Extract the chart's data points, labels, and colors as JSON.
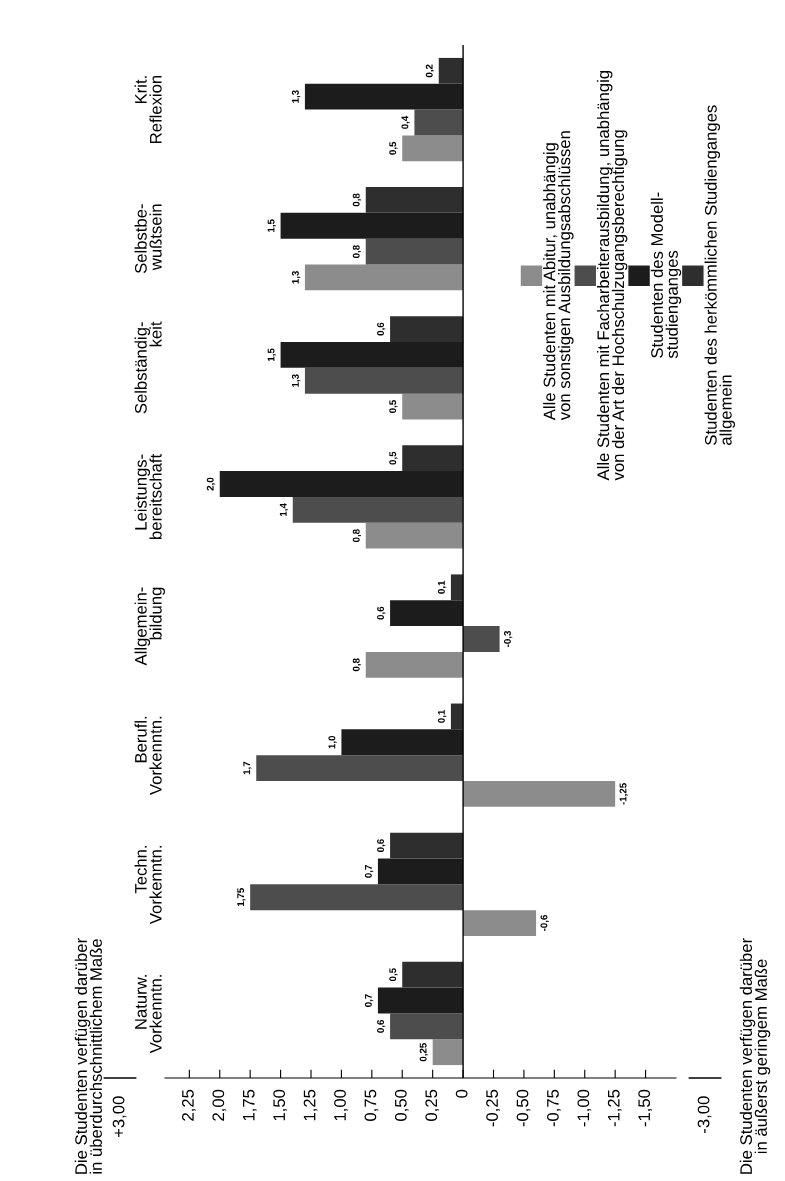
{
  "chart_data": {
    "type": "bar",
    "orientation": "horizontal",
    "categories": [
      "Krit.\nReflexion",
      "Selbstbe-\nwußtsein",
      "Selbständig-\nkeit",
      "Leistungs-\nbereitschaft",
      "Allgemein-\nbildung",
      "Berufl.\nVorkenntn.",
      "Techn.\nVorkenntn.",
      "Naturw.\nVorkenntn."
    ],
    "series": [
      {
        "name": "Alle Studenten mit Abitur, unabhängig\nvon sonstigen Ausbildungsabschlüssen",
        "color": "#8c8c8c",
        "values": [
          0.5,
          1.3,
          0.5,
          0.8,
          0.8,
          -1.25,
          -0.6,
          0.25
        ],
        "value_labels": [
          "0,5",
          "1,3",
          "0,5",
          "0,8",
          "0,8",
          "-1,25",
          "-0,6",
          "0,25"
        ]
      },
      {
        "name": "Alle Studenten mit Facharbeiterausbildung, unabhängig\nvon der Art der Hochschulzugangsberechtigung",
        "color": "#4d4d4d",
        "values": [
          0.4,
          0.8,
          1.3,
          1.4,
          -0.3,
          1.7,
          1.75,
          0.6
        ],
        "value_labels": [
          "0,4",
          "0,8",
          "1,3",
          "1,4",
          "-0,3",
          "1,7",
          "1,75",
          "0,6"
        ]
      },
      {
        "name": "Studenten des Modell-\nstudienganges",
        "color": "#1c1c1c",
        "values": [
          1.3,
          1.5,
          1.5,
          2.0,
          0.6,
          1.0,
          0.7,
          0.7
        ],
        "value_labels": [
          "1,3",
          "1,5",
          "1,5",
          "2,0",
          "0,6",
          "1,0",
          "0,7",
          "0,7"
        ]
      },
      {
        "name": "Studenten des herkömmlichen Studienganges\nallgemein",
        "color": "#2e2e2e",
        "values": [
          0.2,
          0.8,
          0.6,
          0.5,
          0.1,
          0.1,
          0.6,
          0.5
        ],
        "value_labels": [
          "0,2",
          "0,8",
          "0,6",
          "0,5",
          "0,1",
          "0,1",
          "0,6",
          "0,5"
        ]
      }
    ],
    "xlim": [
      2.45,
      -1.75
    ],
    "xticks": [
      {
        "value": 2.25,
        "label": "2,25"
      },
      {
        "value": 2.0,
        "label": "2,00"
      },
      {
        "value": 1.75,
        "label": "1,75"
      },
      {
        "value": 1.5,
        "label": "1,50"
      },
      {
        "value": 1.25,
        "label": "1,25"
      },
      {
        "value": 1.0,
        "label": "1,00"
      },
      {
        "value": 0.75,
        "label": "0,75"
      },
      {
        "value": 0.5,
        "label": "0,50"
      },
      {
        "value": 0.25,
        "label": "0,25"
      },
      0,
      {
        "value": -0.25,
        "label": "-0,25"
      },
      {
        "value": -0.5,
        "label": "-0,50"
      },
      {
        "value": -0.75,
        "label": "-0,75"
      },
      {
        "value": -1.0,
        "label": "-1,00"
      },
      {
        "value": -1.25,
        "label": "-1,25"
      },
      {
        "value": -1.5,
        "label": "-1,50"
      }
    ],
    "annotations": [
      "+3,00",
      "-3,00",
      "Die Studenten verfügen darüber\nin überdurchschnittlichem Maße",
      "Die Studenten verfügen darüber\nin äußerst geringem Maße"
    ],
    "ref_lines": [
      {
        "axis": "x",
        "value": 0
      }
    ],
    "legend": "top right",
    "grid": false
  }
}
